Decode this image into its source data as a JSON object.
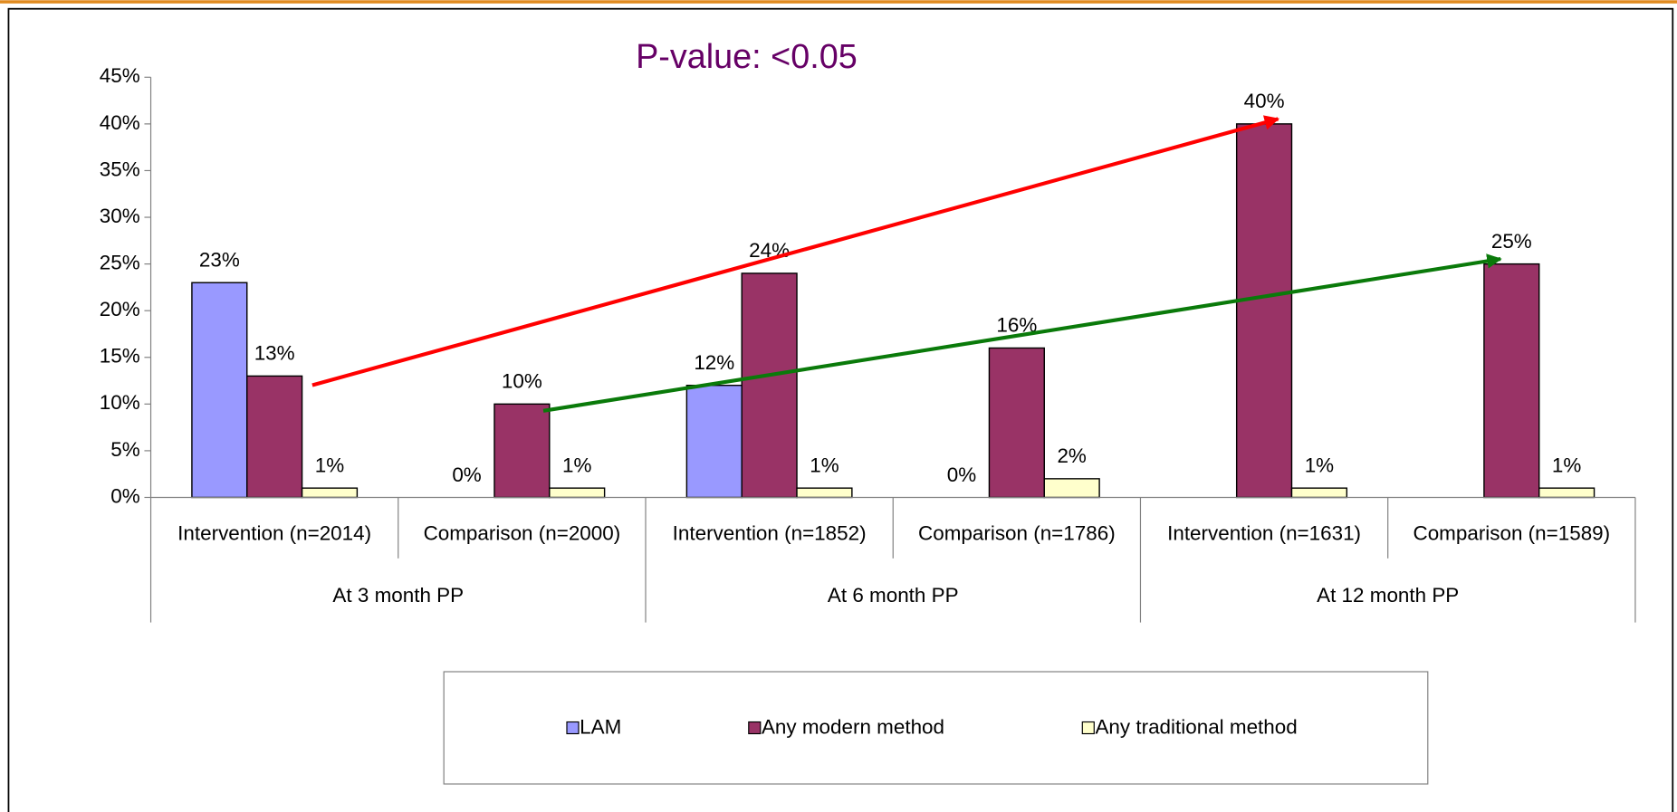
{
  "chart_data": {
    "type": "bar",
    "title": "P-value: <0.05",
    "categories": [
      "Intervention (n=2014)",
      "Comparison (n=2000)",
      "Intervention (n=1852)",
      "Comparison (n=1786)",
      "Intervention (n=1631)",
      "Comparison (n=1589)"
    ],
    "groups": [
      "At 3 month PP",
      "At 6 month PP",
      "At 12 month PP"
    ],
    "series": [
      {
        "name": "LAM",
        "color": "#9999ff",
        "values": [
          23,
          0,
          12,
          0,
          null,
          null
        ],
        "value_labels": [
          "23%",
          "0%",
          "12%",
          "0%",
          null,
          null
        ]
      },
      {
        "name": "Any modern method",
        "color": "#993366",
        "values": [
          13,
          10,
          24,
          16,
          40,
          25
        ],
        "value_labels": [
          "13%",
          "10%",
          "24%",
          "16%",
          "40%",
          "25%"
        ]
      },
      {
        "name": "Any traditional method",
        "color": "#ffffcc",
        "values": [
          1,
          1,
          1,
          2,
          1,
          1
        ],
        "value_labels": [
          "1%",
          "1%",
          "1%",
          "2%",
          "1%",
          "1%"
        ]
      }
    ],
    "ylim": [
      0,
      45
    ],
    "yticks": [
      {
        "value": 0,
        "label": "0%"
      },
      {
        "value": 5,
        "label": "5%"
      },
      {
        "value": 10,
        "label": "10%"
      },
      {
        "value": 15,
        "label": "15%"
      },
      {
        "value": 20,
        "label": "20%"
      },
      {
        "value": 25,
        "label": "25%"
      },
      {
        "value": 30,
        "label": "30%"
      },
      {
        "value": 35,
        "label": "35%"
      },
      {
        "value": 40,
        "label": "40%"
      },
      {
        "value": 45,
        "label": "45%"
      }
    ],
    "legend": "bottom"
  }
}
